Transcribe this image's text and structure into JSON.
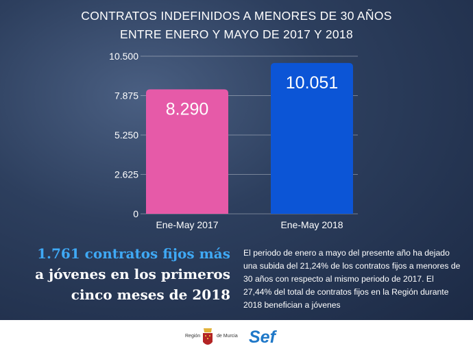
{
  "chart_data": {
    "type": "bar",
    "title": "CONTRATOS INDEFINIDOS A MENORES DE 30 AÑOS ENTRE ENERO Y MAYO DE 2017 Y 2018",
    "title_lines": [
      "CONTRATOS INDEFINIDOS A MENORES DE 30 AÑOS",
      "ENTRE ENERO Y MAYO DE 2017 Y 2018"
    ],
    "categories": [
      "Ene-May 2017",
      "Ene-May 2018"
    ],
    "values": [
      8290,
      10051
    ],
    "value_labels": [
      "8.290",
      "10.051"
    ],
    "colors": [
      "#e65aa8",
      "#0c55d6"
    ],
    "yticks": [
      0,
      2625,
      5250,
      7875,
      10500
    ],
    "ytick_labels": [
      "0",
      "2.625",
      "5.250",
      "7.875",
      "10.500"
    ],
    "ylim": [
      0,
      10500
    ],
    "xlabel": "",
    "ylabel": "",
    "grid": true
  },
  "headline": [
    "1.761 contratos fijos más",
    "a jóvenes en los primeros",
    "cinco meses de 2018"
  ],
  "paragraph": "El periodo de enero a mayo del presente año ha dejado una subida del 21,24% de los contratos fijos a menores de 30 años con respecto al mismo periodo de 2017. El 27,44% del total de contratos fijos en la Región durante 2018 benefician a jóvenes",
  "footer": {
    "region_left": "Región",
    "region_right": "de Murcia",
    "sef": "Sef"
  }
}
